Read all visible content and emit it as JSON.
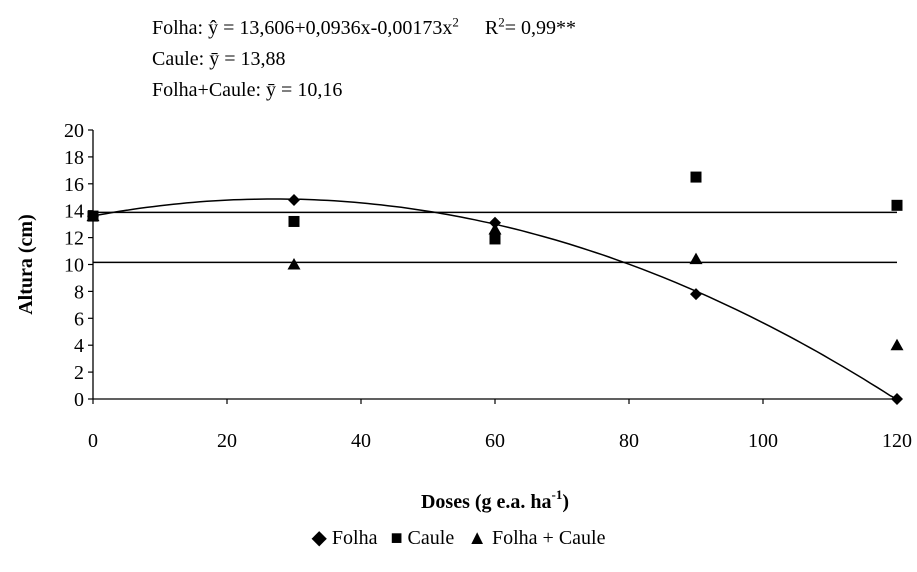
{
  "equations": {
    "folha": {
      "prefix": "Folha: ŷ = 13,606+0,0936x-0,00173x",
      "exp": "2",
      "r2_label": "R",
      "r2_exp": "2",
      "r2_value": "= 0,99**"
    },
    "caule": "Caule:  ȳ  = 13,88",
    "folha_caule": "Folha+Caule:  ȳ  = 10,16"
  },
  "chart_data": {
    "type": "scatter",
    "x": [
      0,
      30,
      60,
      90,
      120
    ],
    "xticks": [
      "0",
      "20",
      "40",
      "60",
      "80",
      "100",
      "120"
    ],
    "xtick_values": [
      0,
      20,
      40,
      60,
      80,
      100,
      120
    ],
    "yticks": [
      "0",
      "2",
      "4",
      "6",
      "8",
      "10",
      "12",
      "14",
      "16",
      "18",
      "20"
    ],
    "ytick_values": [
      0,
      2,
      4,
      6,
      8,
      10,
      12,
      14,
      16,
      18,
      20
    ],
    "xlim": [
      0,
      120
    ],
    "ylim": [
      0,
      20
    ],
    "xlabel": {
      "text": "Doses (g e.a. ha",
      "sup": "-1",
      "suffix": ")"
    },
    "ylabel": "Altura (cm)",
    "grid": false,
    "legend_position": "bottom",
    "series": [
      {
        "name": "Folha",
        "marker": "diamond",
        "values": [
          13.6,
          14.8,
          13.1,
          7.8,
          0.0
        ],
        "fit": {
          "type": "quadratic",
          "coef": [
            13.606,
            0.0936,
            -0.00173
          ]
        }
      },
      {
        "name": "Caule",
        "marker": "square",
        "values": [
          13.6,
          13.2,
          11.9,
          16.5,
          14.4
        ],
        "fit": {
          "type": "constant",
          "value": 13.88
        }
      },
      {
        "name": "Folha + Caule",
        "marker": "triangle",
        "values": [
          13.6,
          10.0,
          12.6,
          10.4,
          4.0
        ],
        "fit": {
          "type": "constant",
          "value": 10.16
        }
      }
    ]
  },
  "legend": {
    "items": [
      {
        "symbol": "◆",
        "label": "Folha"
      },
      {
        "symbol": "■",
        "label": "Caule"
      },
      {
        "symbol": "▲",
        "label": "Folha + Caule"
      }
    ]
  }
}
